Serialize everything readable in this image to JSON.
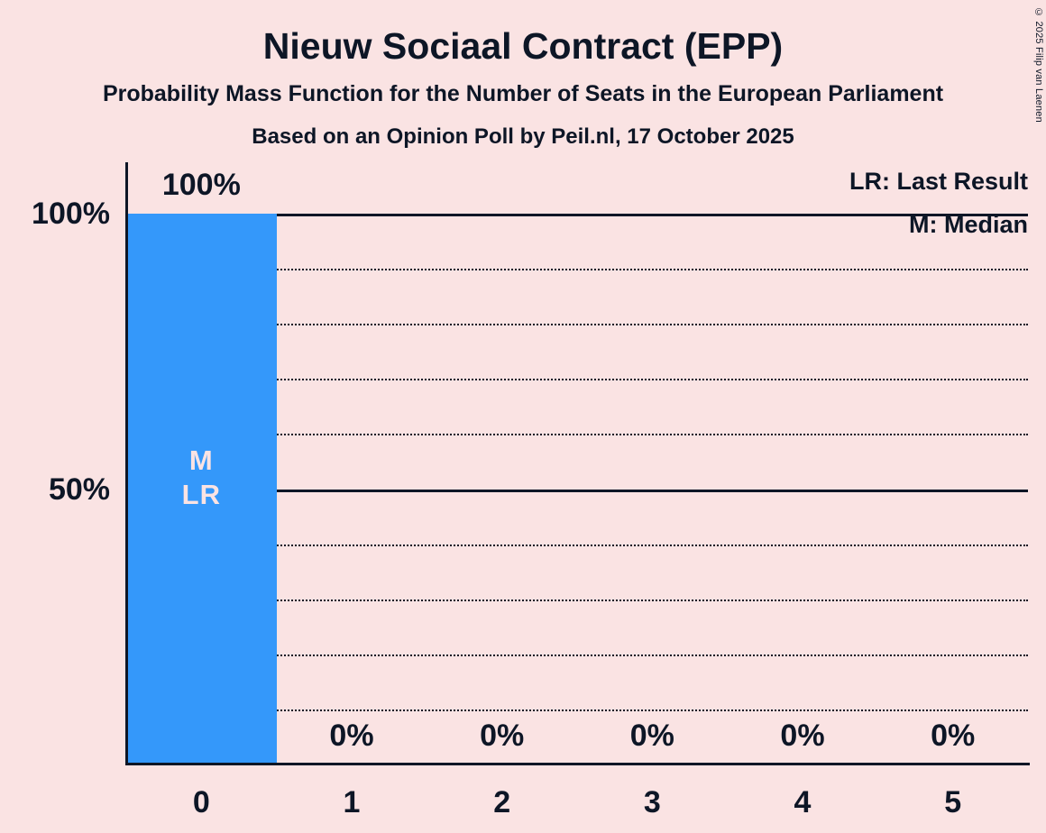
{
  "copyright": "© 2025 Filip van Laenen",
  "chart_data": {
    "type": "bar",
    "title": "Nieuw Sociaal Contract (EPP)",
    "subtitle": "Probability Mass Function for the Number of Seats in the European Parliament",
    "poll_line": "Based on an Opinion Poll by Peil.nl, 17 October 2025",
    "xlabel": "",
    "ylabel": "",
    "categories": [
      "0",
      "1",
      "2",
      "3",
      "4",
      "5"
    ],
    "values": [
      100,
      0,
      0,
      0,
      0,
      0
    ],
    "value_labels": [
      "100%",
      "0%",
      "0%",
      "0%",
      "0%",
      "0%"
    ],
    "ylim": [
      0,
      100
    ],
    "grid": "horizontal, dotted every 10%, solid at 50% and 100%",
    "legend_position": "top-right",
    "yticks": [
      {
        "value": 100,
        "label": "100%",
        "style": "solid"
      },
      {
        "value": 90,
        "label": "",
        "style": "dotted"
      },
      {
        "value": 80,
        "label": "",
        "style": "dotted"
      },
      {
        "value": 70,
        "label": "",
        "style": "dotted"
      },
      {
        "value": 60,
        "label": "",
        "style": "dotted"
      },
      {
        "value": 50,
        "label": "50%",
        "style": "solid"
      },
      {
        "value": 40,
        "label": "",
        "style": "dotted"
      },
      {
        "value": 30,
        "label": "",
        "style": "dotted"
      },
      {
        "value": 20,
        "label": "",
        "style": "dotted"
      },
      {
        "value": 10,
        "label": "",
        "style": "dotted"
      }
    ],
    "legend": [
      {
        "text": "LR: Last Result"
      },
      {
        "text": "M: Median"
      }
    ],
    "bar_annotations": [
      {
        "category": "0",
        "lines": [
          "M",
          "LR"
        ]
      }
    ],
    "colors": {
      "background": "#fae3e3",
      "bar": "#3498fa",
      "text": "#0d1626",
      "in_bar_text": "#fae3e3"
    }
  }
}
